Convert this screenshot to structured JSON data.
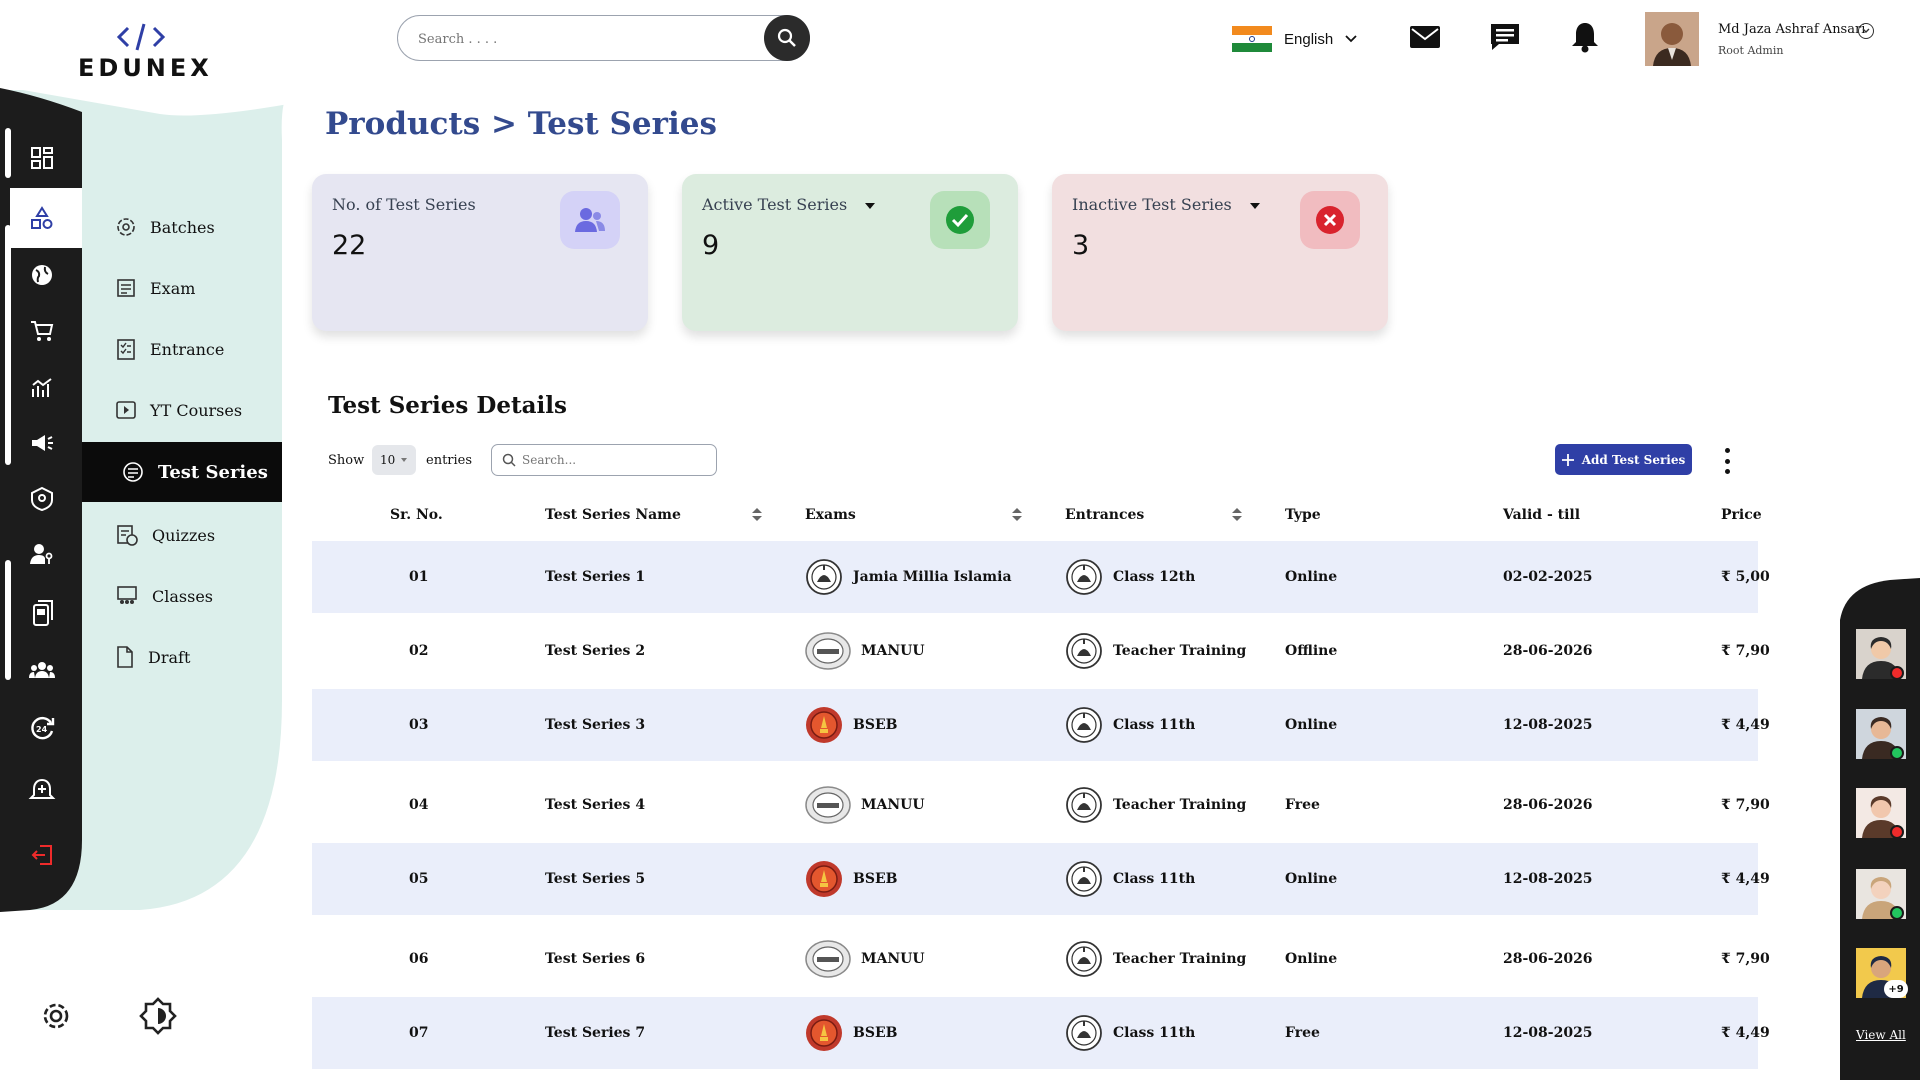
{
  "app": {
    "brand": "EDUNEX",
    "search_placeholder": "Search . . . ."
  },
  "header": {
    "language": "English",
    "user_name": "Md Jaza Ashraf Ansari",
    "user_role": "Root Admin",
    "icons": [
      "mail-icon",
      "chat-icon",
      "bell-icon"
    ]
  },
  "rail": {
    "icons": [
      "dashboard-icon",
      "products-icon",
      "globe-icon",
      "cart-icon",
      "analytics-icon",
      "megaphone-icon",
      "shield-icon",
      "user-key-icon",
      "device-icon",
      "group-icon",
      "support-24-7-icon",
      "alarm-icon",
      "logout-icon"
    ]
  },
  "submenu": {
    "items": [
      {
        "label": "Batches",
        "icon": "batches-icon"
      },
      {
        "label": "Exam",
        "icon": "exam-icon"
      },
      {
        "label": "Entrance",
        "icon": "entrance-icon"
      },
      {
        "label": "YT Courses",
        "icon": "youtube-icon"
      },
      {
        "label": "Test Series",
        "icon": "test-series-icon"
      },
      {
        "label": "Quizzes",
        "icon": "quizzes-icon"
      },
      {
        "label": "Classes",
        "icon": "classes-icon"
      },
      {
        "label": "Draft",
        "icon": "draft-icon"
      }
    ]
  },
  "bottom": {
    "icons": [
      "settings-icon",
      "theme-icon"
    ]
  },
  "page": {
    "breadcrumb": "Products > Test Series"
  },
  "cards": [
    {
      "label": "No. of Test Series",
      "value": "22",
      "bg": "#e6e6f2",
      "icon_bg": "#d4d2f7",
      "icon": "users-icon"
    },
    {
      "label": "Active Test Series",
      "value": "9",
      "bg": "#dcecdf",
      "icon_bg": "#b7e0b9",
      "icon": "check-icon"
    },
    {
      "label": "Inactive Test Series",
      "value": "3",
      "bg": "#f2dfe0",
      "icon_bg": "#f1bcc0",
      "icon": "close-icon"
    }
  ],
  "table": {
    "title": "Test Series Details",
    "show_label": "Show",
    "page_size": "10",
    "entries_label": "entries",
    "search_placeholder": "Search...",
    "add_button": "Add Test Series",
    "columns": [
      "Sr. No.",
      "Test Series Name",
      "Exams",
      "Entrances",
      "Type",
      "Valid - till",
      "Price"
    ],
    "rows": [
      {
        "sr": "01",
        "name": "Test Series 1",
        "exam": "Jamia Millia Islamia",
        "exam_logo": "emblem",
        "entrance": "Class 12th",
        "type": "Online",
        "valid": "02-02-2025",
        "price": "₹ 5,00"
      },
      {
        "sr": "02",
        "name": "Test Series 2",
        "exam": "MANUU",
        "exam_logo": "seal",
        "entrance": "Teacher Training",
        "type": "Offline",
        "valid": "28-06-2026",
        "price": "₹ 7,90"
      },
      {
        "sr": "03",
        "name": "Test Series 3",
        "exam": "BSEB",
        "exam_logo": "bseb",
        "entrance": "Class 11th",
        "type": "Online",
        "valid": "12-08-2025",
        "price": "₹ 4,49"
      },
      {
        "sr": "04",
        "name": "Test Series 4",
        "exam": "MANUU",
        "exam_logo": "seal",
        "entrance": "Teacher Training",
        "type": "Free",
        "valid": "28-06-2026",
        "price": "₹ 7,90"
      },
      {
        "sr": "05",
        "name": "Test Series 5",
        "exam": "BSEB",
        "exam_logo": "bseb",
        "entrance": "Class 11th",
        "type": "Online",
        "valid": "12-08-2025",
        "price": "₹ 4,49"
      },
      {
        "sr": "06",
        "name": "Test Series 6",
        "exam": "MANUU",
        "exam_logo": "seal",
        "entrance": "Teacher Training",
        "type": "Online",
        "valid": "28-06-2026",
        "price": "₹ 7,90"
      },
      {
        "sr": "07",
        "name": "Test Series 7",
        "exam": "BSEB",
        "exam_logo": "bseb",
        "entrance": "Class 11th",
        "type": "Free",
        "valid": "12-08-2025",
        "price": "₹ 4,49"
      }
    ]
  },
  "presence": {
    "avatars": [
      {
        "status_color": "#ef2b2b"
      },
      {
        "status_color": "#22c55e"
      },
      {
        "status_color": "#ef2b2b"
      },
      {
        "status_color": "#22c55e"
      },
      {
        "badge": "+9"
      }
    ],
    "view_all": "View All"
  },
  "colors": {
    "accent": "#2f3fa6",
    "breadcrumb": "#334a8e",
    "rail_dark": "#1c1c1c",
    "submenu_bg": "#dcefeb",
    "row_alt": "#eaeefa"
  }
}
